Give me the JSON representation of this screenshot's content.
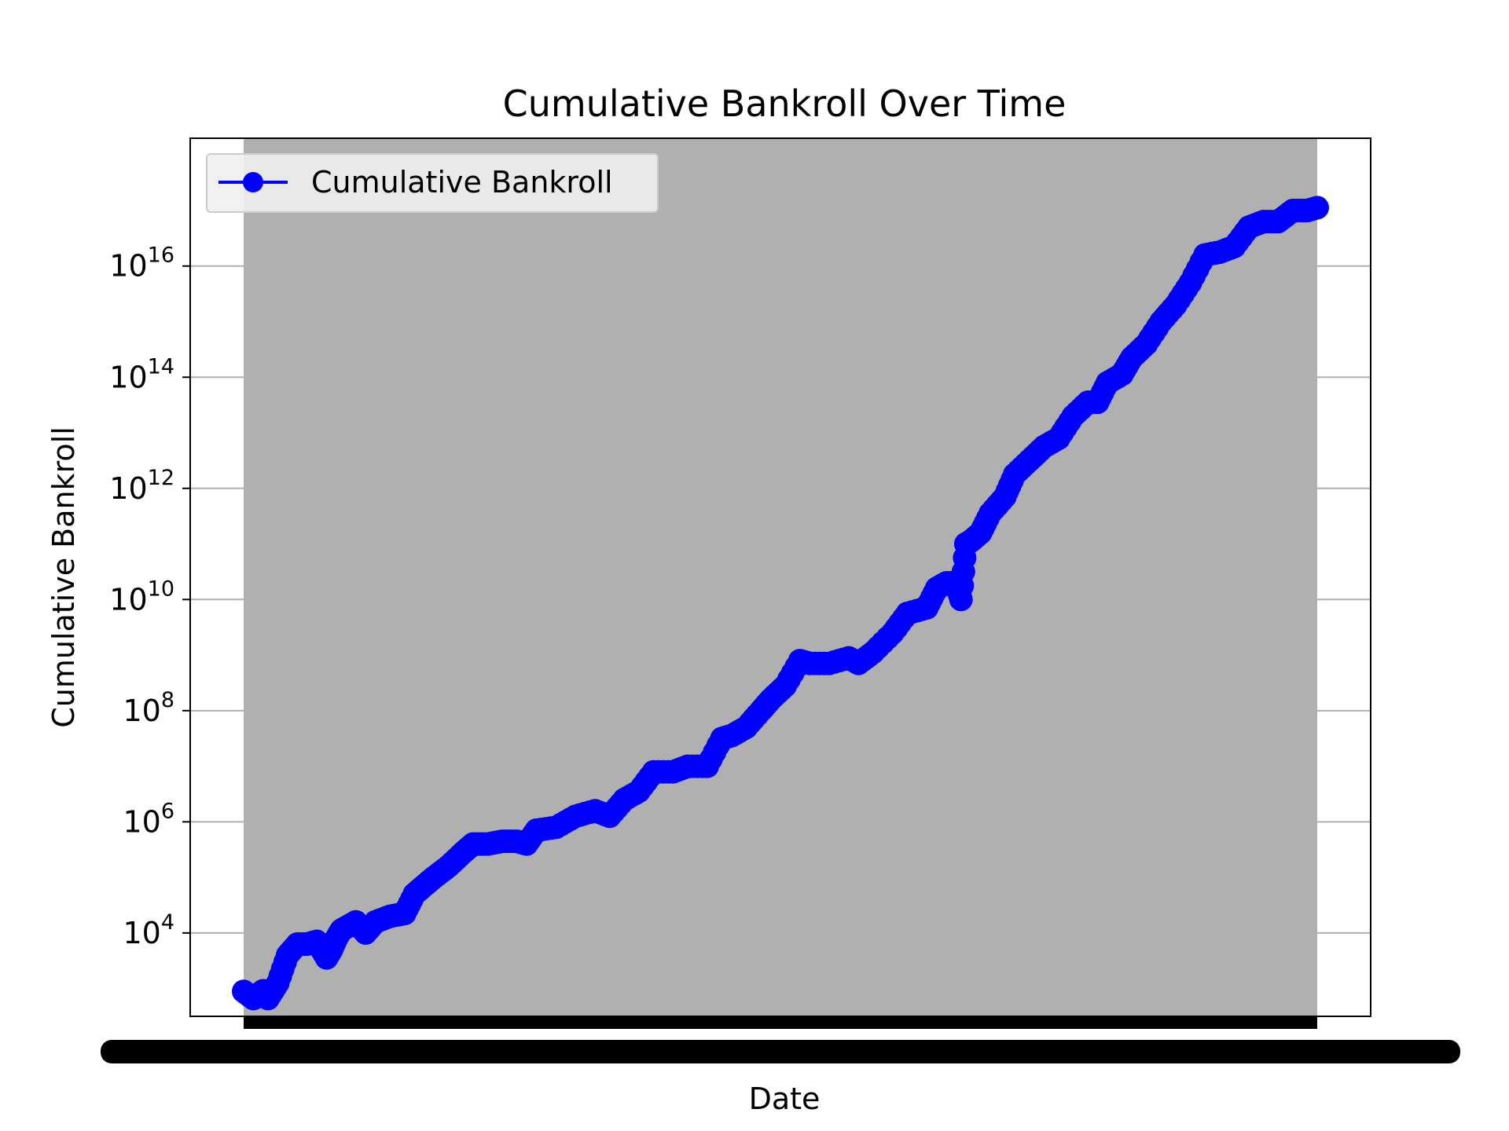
{
  "chart_data": {
    "type": "line",
    "title": "Cumulative Bankroll Over Time",
    "xlabel": "Date",
    "ylabel": "Cumulative Bankroll",
    "yscale": "log",
    "ylim_exponent": [
      2.5,
      18.3
    ],
    "yticks": [
      {
        "base": "10",
        "exp": "4",
        "exponent": 4
      },
      {
        "base": "10",
        "exp": "6",
        "exponent": 6
      },
      {
        "base": "10",
        "exp": "8",
        "exponent": 8
      },
      {
        "base": "10",
        "exp": "10",
        "exponent": 10
      },
      {
        "base": "10",
        "exp": "12",
        "exponent": 12
      },
      {
        "base": "10",
        "exp": "14",
        "exponent": 14
      },
      {
        "base": "10",
        "exp": "16",
        "exponent": 16
      }
    ],
    "grid": "y",
    "legend_position": "top-left",
    "series": [
      {
        "name": "Cumulative Bankroll",
        "color": "#0000ff",
        "marker": "circle",
        "points": [
          [
            0.0,
            2.95
          ],
          [
            0.01,
            2.82
          ],
          [
            0.02,
            2.96
          ],
          [
            0.025,
            2.82
          ],
          [
            0.035,
            3.1
          ],
          [
            0.045,
            3.6
          ],
          [
            0.055,
            3.8
          ],
          [
            0.065,
            3.8
          ],
          [
            0.075,
            3.85
          ],
          [
            0.085,
            3.55
          ],
          [
            0.09,
            3.7
          ],
          [
            0.095,
            3.9
          ],
          [
            0.1,
            4.05
          ],
          [
            0.105,
            4.1
          ],
          [
            0.115,
            4.2
          ],
          [
            0.125,
            4.0
          ],
          [
            0.135,
            4.2
          ],
          [
            0.15,
            4.3
          ],
          [
            0.165,
            4.35
          ],
          [
            0.175,
            4.7
          ],
          [
            0.185,
            4.85
          ],
          [
            0.195,
            5.0
          ],
          [
            0.21,
            5.2
          ],
          [
            0.225,
            5.45
          ],
          [
            0.235,
            5.6
          ],
          [
            0.25,
            5.6
          ],
          [
            0.265,
            5.65
          ],
          [
            0.28,
            5.65
          ],
          [
            0.29,
            5.6
          ],
          [
            0.3,
            5.85
          ],
          [
            0.32,
            5.9
          ],
          [
            0.34,
            6.1
          ],
          [
            0.36,
            6.2
          ],
          [
            0.375,
            6.1
          ],
          [
            0.39,
            6.4
          ],
          [
            0.405,
            6.55
          ],
          [
            0.42,
            6.9
          ],
          [
            0.44,
            6.9
          ],
          [
            0.455,
            7.0
          ],
          [
            0.475,
            7.0
          ],
          [
            0.49,
            7.5
          ],
          [
            0.5,
            7.55
          ],
          [
            0.515,
            7.7
          ],
          [
            0.53,
            8.0
          ],
          [
            0.54,
            8.2
          ],
          [
            0.555,
            8.45
          ],
          [
            0.57,
            8.9
          ],
          [
            0.58,
            8.85
          ],
          [
            0.6,
            8.85
          ],
          [
            0.62,
            8.95
          ],
          [
            0.63,
            8.85
          ],
          [
            0.645,
            9.05
          ],
          [
            0.665,
            9.4
          ],
          [
            0.68,
            9.75
          ],
          [
            0.7,
            9.85
          ],
          [
            0.71,
            10.2
          ],
          [
            0.72,
            10.3
          ],
          [
            0.73,
            10.3
          ],
          [
            0.735,
            10.0
          ],
          [
            0.74,
            11.0
          ],
          [
            0.745,
            11.05
          ],
          [
            0.755,
            11.2
          ],
          [
            0.765,
            11.55
          ],
          [
            0.78,
            11.85
          ],
          [
            0.79,
            12.25
          ],
          [
            0.805,
            12.5
          ],
          [
            0.82,
            12.75
          ],
          [
            0.835,
            12.9
          ],
          [
            0.85,
            13.3
          ],
          [
            0.865,
            13.55
          ],
          [
            0.875,
            13.55
          ],
          [
            0.885,
            13.9
          ],
          [
            0.9,
            14.05
          ],
          [
            0.91,
            14.35
          ],
          [
            0.925,
            14.6
          ],
          [
            0.94,
            15.0
          ],
          [
            0.955,
            15.3
          ],
          [
            0.97,
            15.7
          ],
          [
            0.985,
            16.2
          ],
          [
            1.0,
            16.25
          ],
          [
            1.015,
            16.35
          ],
          [
            1.03,
            16.7
          ],
          [
            1.045,
            16.8
          ],
          [
            1.06,
            16.8
          ],
          [
            1.075,
            17.0
          ],
          [
            1.09,
            17.0
          ],
          [
            1.1,
            17.05
          ]
        ]
      }
    ]
  }
}
